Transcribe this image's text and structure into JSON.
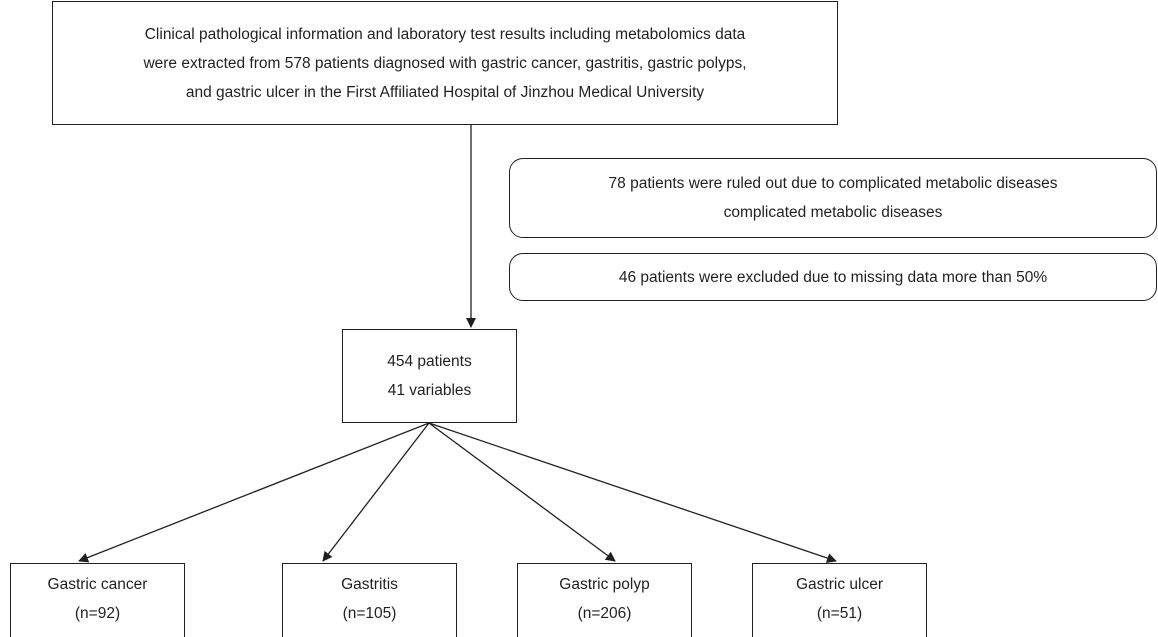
{
  "source": {
    "lines": [
      "Clinical pathological information and laboratory test results including metabolomics data",
      "were extracted from 578 patients diagnosed with gastric cancer, gastritis, gastric polyps,",
      "and gastric ulcer in the First Affiliated Hospital of Jinzhou Medical University"
    ]
  },
  "exclusions": [
    {
      "lines": [
        "78 patients were ruled out due to complicated metabolic diseases",
        "complicated metabolic diseases"
      ]
    },
    {
      "lines": [
        "46 patients were excluded due to missing data more than 50%"
      ]
    }
  ],
  "cohort": {
    "lines": [
      "454 patients",
      "41 variables"
    ]
  },
  "groups": [
    {
      "name": "Gastric cancer",
      "count": "(n=92)"
    },
    {
      "name": "Gastritis",
      "count": "(n=105)"
    },
    {
      "name": "Gastric polyp",
      "count": "(n=206)"
    },
    {
      "name": "Gastric ulcer",
      "count": "(n=51)"
    }
  ]
}
